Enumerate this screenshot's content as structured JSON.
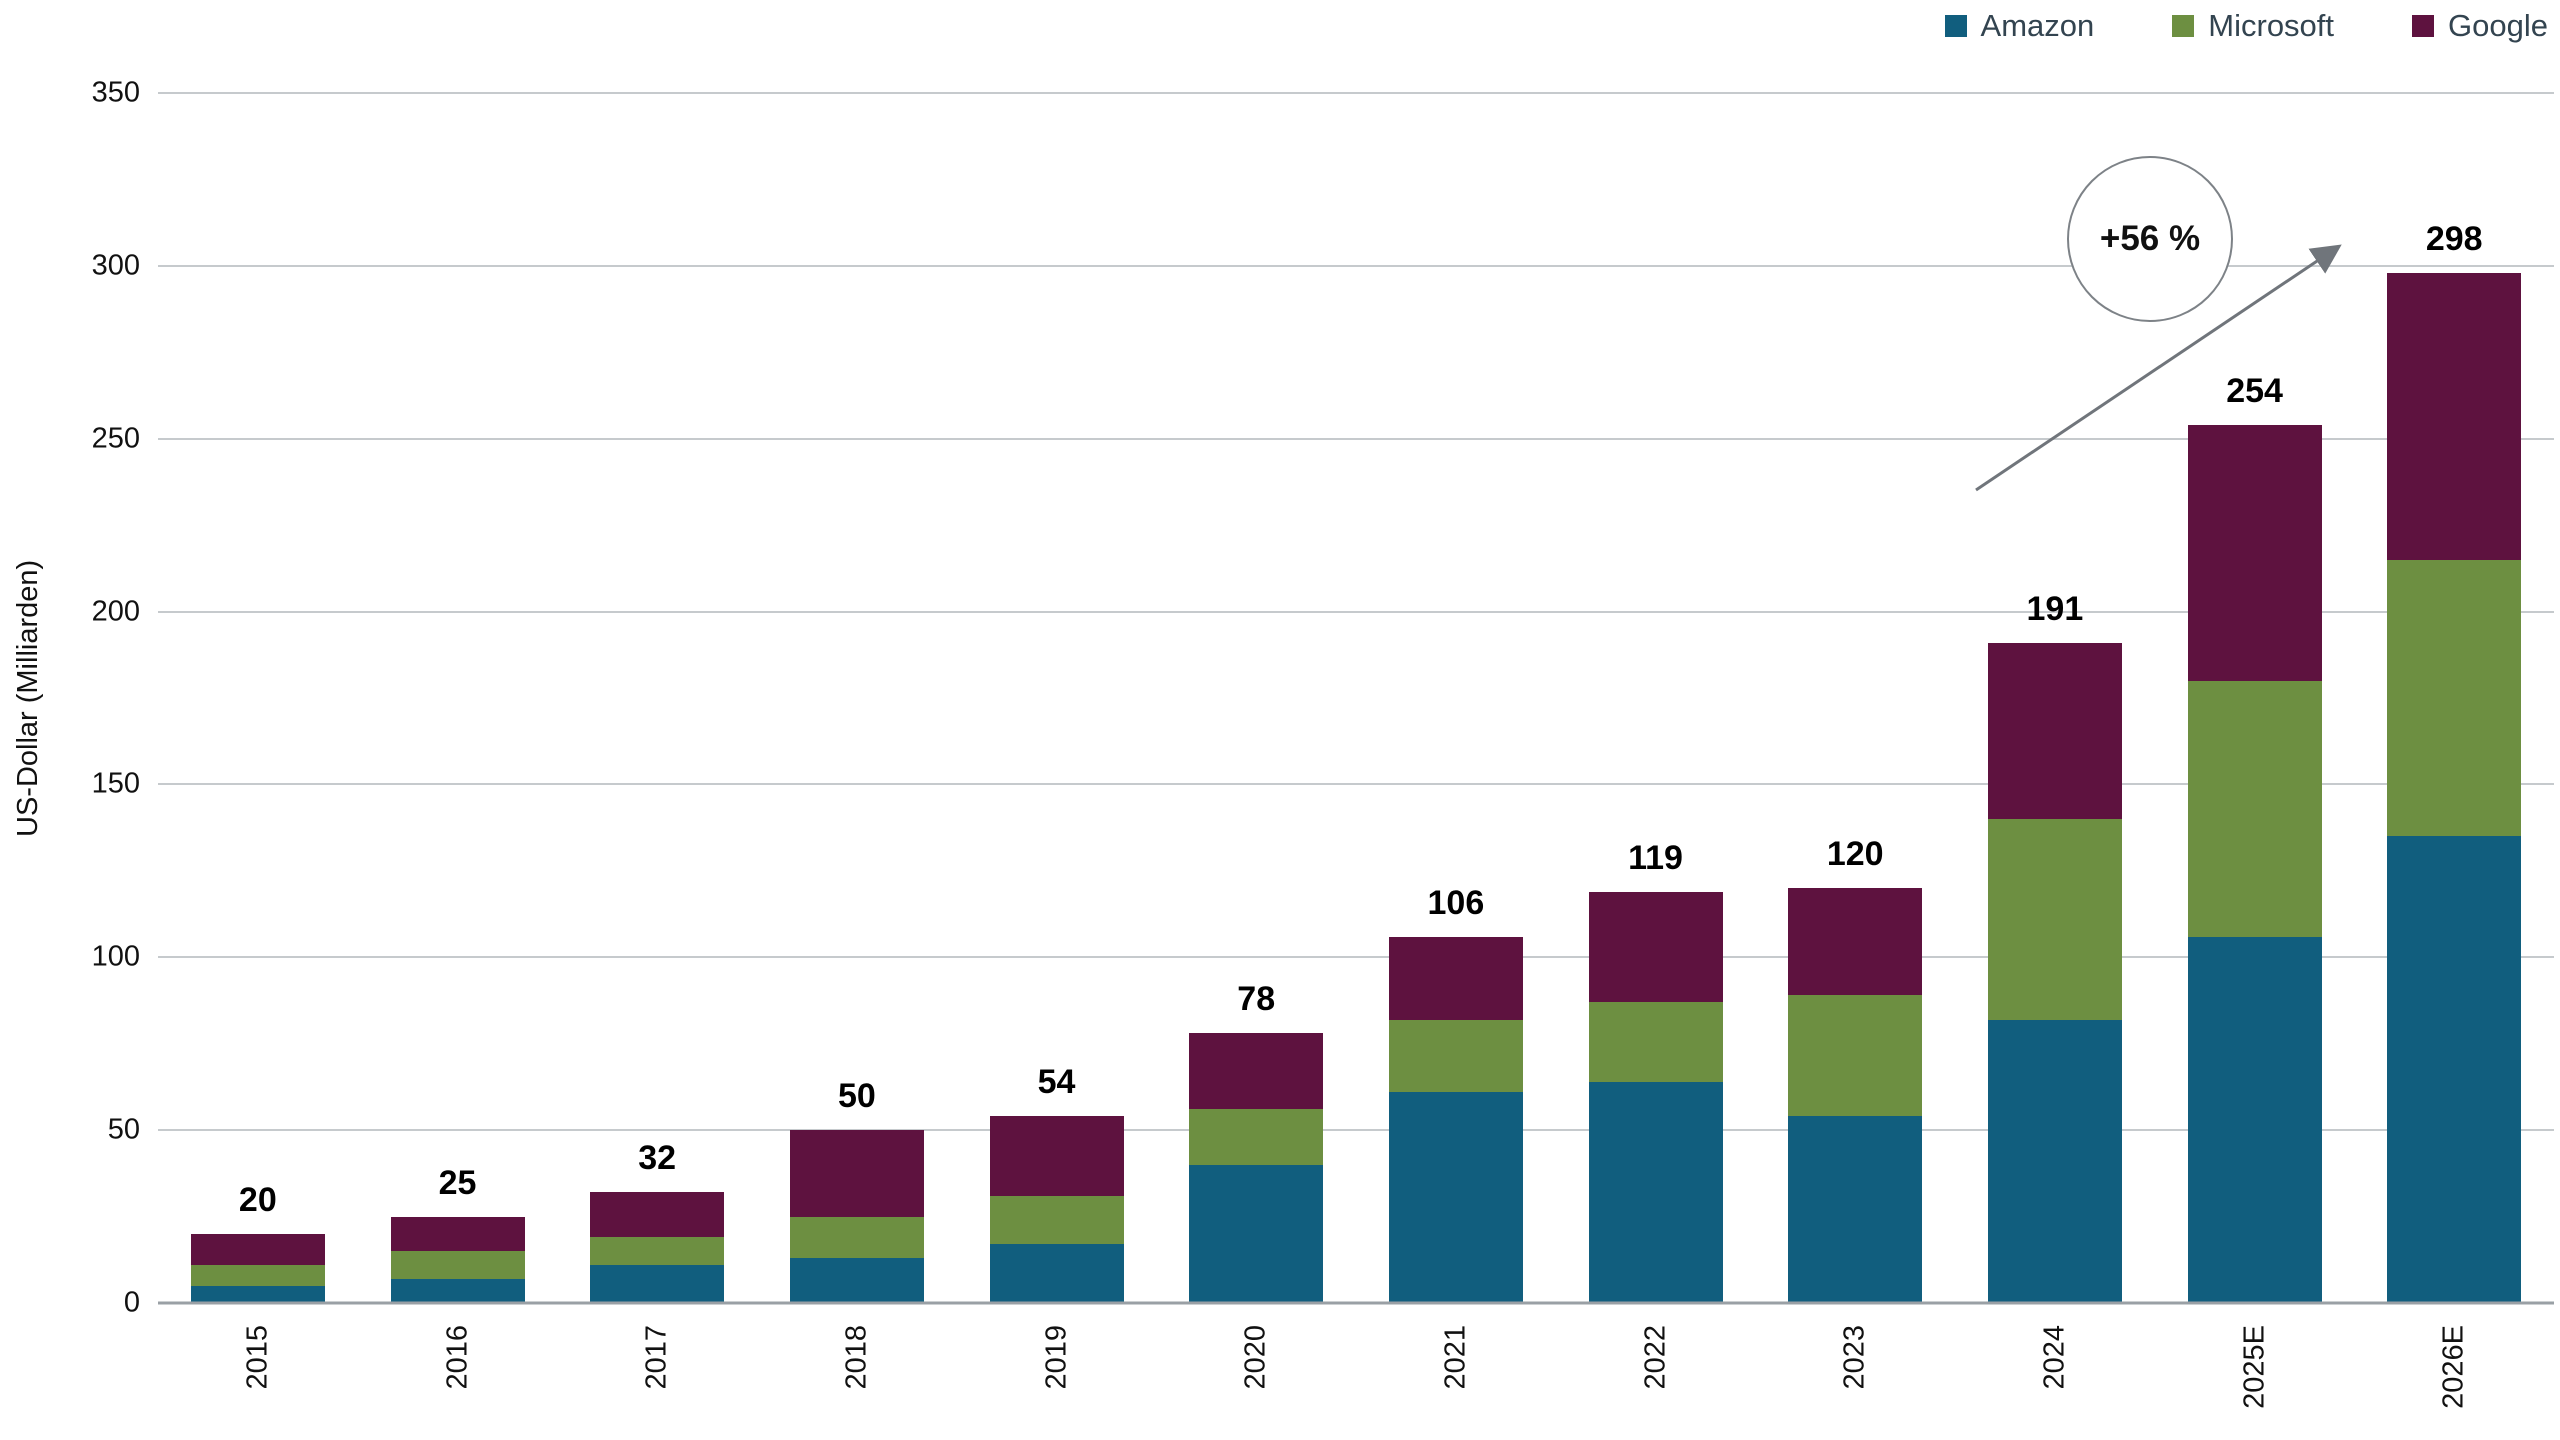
{
  "chart_data": {
    "type": "bar",
    "stacked": true,
    "title": "",
    "ylabel": "US-Dollar (Milliarden)",
    "xlabel": "",
    "ylim": [
      0,
      350
    ],
    "yticks": [
      0,
      50,
      100,
      150,
      200,
      250,
      300,
      350
    ],
    "grid": true,
    "legend_position": "top-right",
    "categories": [
      "2015",
      "2016",
      "2017",
      "2018",
      "2019",
      "2020",
      "2021",
      "2022",
      "2023",
      "2024",
      "2025E",
      "2026E"
    ],
    "series": [
      {
        "name": "Amazon",
        "color": "#115e7e",
        "values": [
          5,
          7,
          11,
          13,
          17,
          40,
          61,
          64,
          54,
          82,
          106,
          135
        ]
      },
      {
        "name": "Microsoft",
        "color": "#6d8f41",
        "values": [
          6,
          8,
          8,
          12,
          14,
          16,
          21,
          23,
          35,
          58,
          74,
          80
        ]
      },
      {
        "name": "Google",
        "color": "#5e123f",
        "values": [
          9,
          10,
          13,
          25,
          23,
          22,
          24,
          32,
          31,
          51,
          74,
          83
        ]
      }
    ],
    "totals": [
      20,
      25,
      32,
      50,
      54,
      78,
      106,
      119,
      120,
      191,
      254,
      298
    ],
    "annotation": {
      "label": "+56 %"
    }
  },
  "colors": {
    "background": "#ffffff",
    "gridline": "#c6cacd",
    "axis_line": "#9aa0a5",
    "arrow": "#70757b",
    "legend_text": "#334450",
    "tick_text": "#111111",
    "total_label_text": "#000000"
  }
}
